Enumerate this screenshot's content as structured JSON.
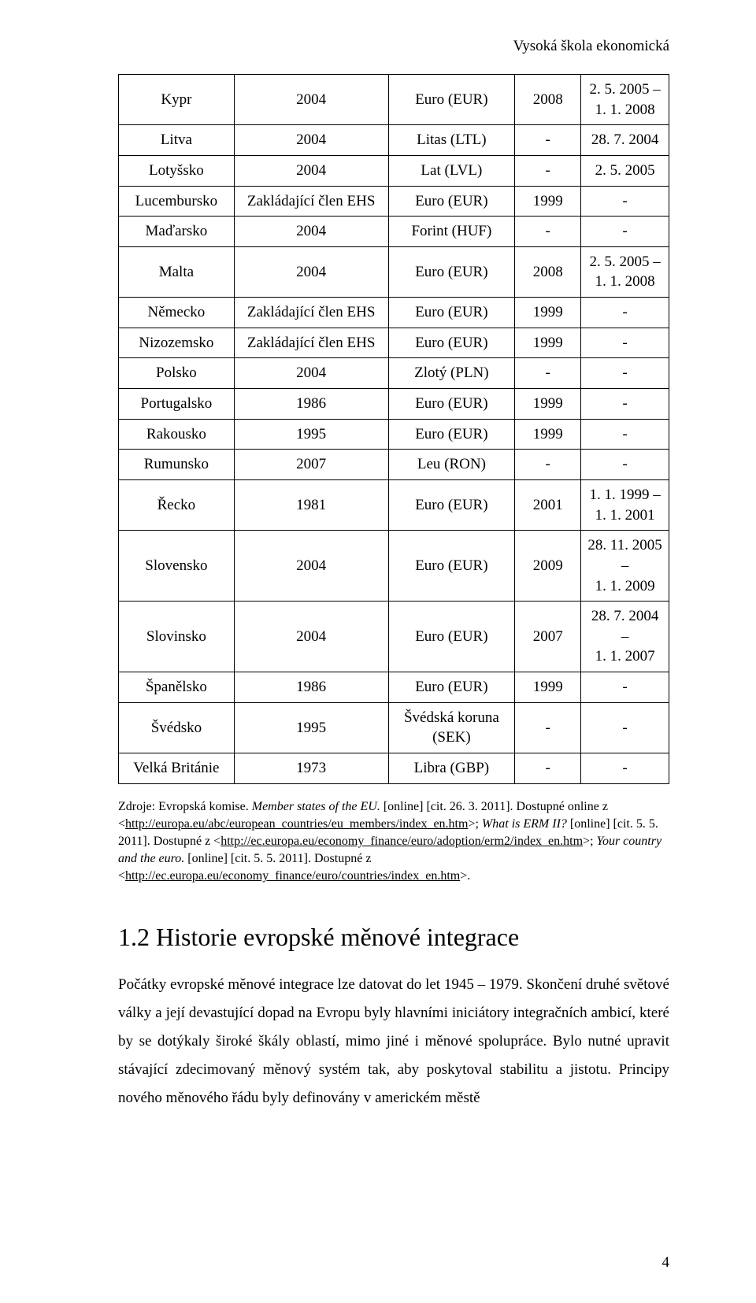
{
  "header": {
    "text": "Vysoká škola ekonomická"
  },
  "table": {
    "rows": [
      {
        "c1": "Kypr",
        "c2": "2004",
        "c3": "Euro (EUR)",
        "c4": "2008",
        "c5": "2. 5. 2005 –\n1. 1. 2008"
      },
      {
        "c1": "Litva",
        "c2": "2004",
        "c3": "Litas (LTL)",
        "c4": "-",
        "c5": "28. 7. 2004"
      },
      {
        "c1": "Lotyšsko",
        "c2": "2004",
        "c3": "Lat (LVL)",
        "c4": "-",
        "c5": "2. 5. 2005"
      },
      {
        "c1": "Lucembursko",
        "c2": "Zakládající člen EHS",
        "c3": "Euro (EUR)",
        "c4": "1999",
        "c5": "-"
      },
      {
        "c1": "Maďarsko",
        "c2": "2004",
        "c3": "Forint (HUF)",
        "c4": "-",
        "c5": "-"
      },
      {
        "c1": "Malta",
        "c2": "2004",
        "c3": "Euro (EUR)",
        "c4": "2008",
        "c5": "2. 5. 2005 –\n1. 1. 2008"
      },
      {
        "c1": "Německo",
        "c2": "Zakládající člen EHS",
        "c3": "Euro (EUR)",
        "c4": "1999",
        "c5": "-"
      },
      {
        "c1": "Nizozemsko",
        "c2": "Zakládající člen EHS",
        "c3": "Euro (EUR)",
        "c4": "1999",
        "c5": "-"
      },
      {
        "c1": "Polsko",
        "c2": "2004",
        "c3": "Zlotý (PLN)",
        "c4": "-",
        "c5": "-"
      },
      {
        "c1": "Portugalsko",
        "c2": "1986",
        "c3": "Euro (EUR)",
        "c4": "1999",
        "c5": "-"
      },
      {
        "c1": "Rakousko",
        "c2": "1995",
        "c3": "Euro (EUR)",
        "c4": "1999",
        "c5": "-"
      },
      {
        "c1": "Rumunsko",
        "c2": "2007",
        "c3": "Leu (RON)",
        "c4": "-",
        "c5": "-"
      },
      {
        "c1": "Řecko",
        "c2": "1981",
        "c3": "Euro (EUR)",
        "c4": "2001",
        "c5": "1. 1. 1999 –\n1. 1. 2001"
      },
      {
        "c1": "Slovensko",
        "c2": "2004",
        "c3": "Euro (EUR)",
        "c4": "2009",
        "c5": "28. 11. 2005 –\n1. 1. 2009"
      },
      {
        "c1": "Slovinsko",
        "c2": "2004",
        "c3": "Euro (EUR)",
        "c4": "2007",
        "c5": "28. 7. 2004 –\n1. 1. 2007"
      },
      {
        "c1": "Španělsko",
        "c2": "1986",
        "c3": "Euro (EUR)",
        "c4": "1999",
        "c5": "-"
      },
      {
        "c1": "Švédsko",
        "c2": "1995",
        "c3": "Švédská koruna\n(SEK)",
        "c4": "-",
        "c5": "-"
      },
      {
        "c1": "Velká Británie",
        "c2": "1973",
        "c3": "Libra (GBP)",
        "c4": "-",
        "c5": "-"
      }
    ]
  },
  "sources": {
    "prefix1": "Zdroje: Evropská komise. ",
    "italic1": "Member states of the EU. ",
    "after1": "[online] [cit. 26. 3. 2011]. Dostupné online z <",
    "link1": "http://europa.eu/abc/european_countries/eu_members/index_en.htm",
    "afterlink1": ">; ",
    "italic2": "What is ERM II? ",
    "after2": "[online] [cit. 5. 5. 2011]. Dostupné z <",
    "link2": "http://ec.europa.eu/economy_finance/euro/adoption/erm2/index_en.htm",
    "afterlink2": ">; ",
    "italic3": "Your country and the euro. ",
    "after3": "[online] [cit. 5. 5. 2011]. Dostupné z <",
    "link3": "http://ec.europa.eu/economy_finance/euro/countries/index_en.htm",
    "afterlink3": ">."
  },
  "section": {
    "heading": "1.2 Historie evropské měnové integrace"
  },
  "body": {
    "p1": "Počátky evropské měnové integrace lze datovat do let 1945 – 1979. Skončení druhé světové války a její devastující dopad na Evropu byly hlavními iniciátory integračních ambicí, které by se dotýkaly široké škály oblastí, mimo jiné i měnové spolupráce. Bylo nutné upravit stávající zdecimovaný měnový systém tak, aby poskytoval stabilitu a jistotu. Principy nového měnového řádu byly definovány v americkém městě"
  },
  "page_number": "4"
}
